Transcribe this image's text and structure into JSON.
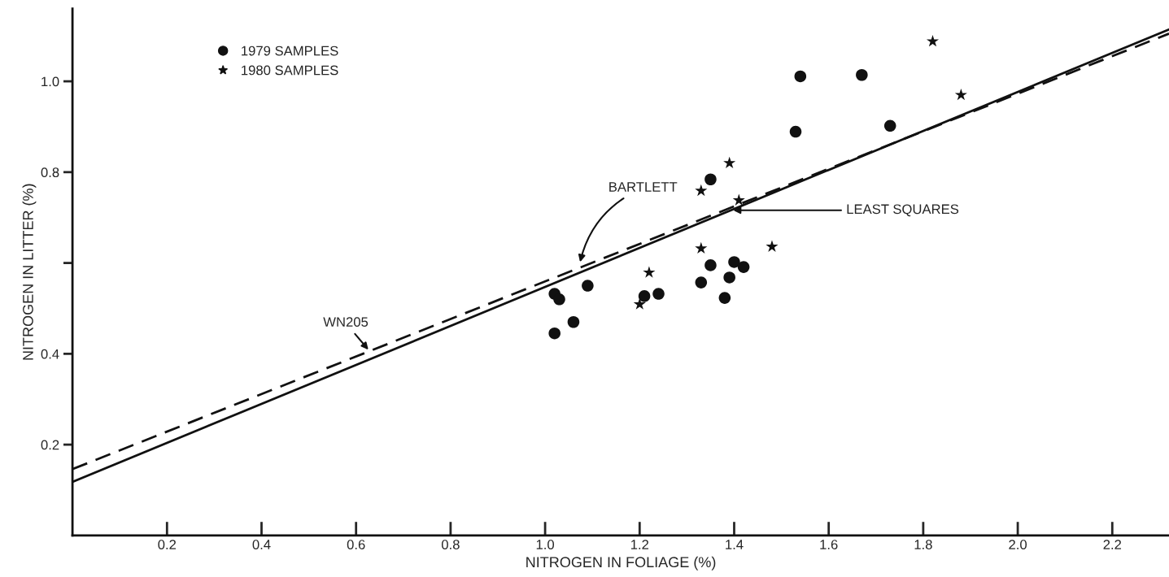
{
  "chart_data": {
    "type": "scatter",
    "xlabel": "NITROGEN IN FOLIAGE (%)",
    "ylabel": "NITROGEN IN LITTER (%)",
    "xlim": [
      0,
      2.32
    ],
    "ylim": [
      0,
      1.16
    ],
    "xticks": [
      0.2,
      0.4,
      0.6,
      0.8,
      {
        "value": 1,
        "label": "1.0"
      },
      1.2,
      1.4,
      1.6,
      1.8,
      {
        "value": 2,
        "label": "2.0"
      },
      2.2
    ],
    "yticks": [
      0.2,
      0.4,
      {
        "value": 0.6,
        "label": null
      },
      0.8,
      {
        "value": 1,
        "label": "1.0"
      }
    ],
    "grid": false,
    "legend": "top left",
    "series": [
      {
        "name": "1979 SAMPLES",
        "type": "scatter",
        "marker": "circle",
        "color": "#111111",
        "x": [
          1.02,
          1.02,
          1.03,
          1.06,
          1.09,
          1.21,
          1.24,
          1.33,
          1.35,
          1.35,
          1.39,
          1.38,
          1.4,
          1.42,
          1.53,
          1.54,
          1.67,
          1.73
        ],
        "values": [
          0.445,
          0.532,
          0.52,
          0.47,
          0.55,
          0.527,
          0.532,
          0.557,
          0.595,
          0.784,
          0.568,
          0.523,
          0.602,
          0.591,
          0.889,
          1.011,
          1.014,
          0.902
        ]
      },
      {
        "name": "1980 SAMPLES",
        "type": "scatter",
        "marker": "star",
        "color": "#111111",
        "x": [
          1.82,
          1.88,
          1.48,
          1.39,
          1.33,
          1.33,
          1.41,
          1.22,
          1.2
        ],
        "values": [
          1.088,
          0.97,
          0.636,
          0.82,
          0.759,
          0.632,
          0.738,
          0.579,
          0.509
        ]
      },
      {
        "type": "line",
        "line_style": "solid",
        "color": "#111111",
        "x": [
          0,
          2.32
        ],
        "values": [
          0.118,
          1.114
        ]
      },
      {
        "type": "line",
        "line_style": "dashed",
        "color": "#111111",
        "x": [
          0,
          2.32
        ],
        "values": [
          0.146,
          1.105
        ]
      }
    ],
    "annotations": [
      {
        "text": "BARTLETT",
        "x": 1.074,
        "y": 0.602
      },
      {
        "text": "LEAST SQUARES",
        "x": 1.398,
        "y": 0.716
      },
      {
        "text": "WN205",
        "x": 0.626,
        "y": 0.409
      }
    ]
  }
}
